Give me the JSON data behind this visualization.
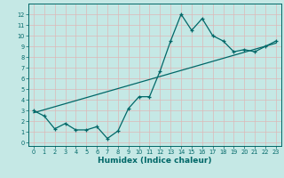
{
  "xlabel": "Humidex (Indice chaleur)",
  "ylabel": "",
  "bg_color": "#c5e8e5",
  "grid_color": "#ddb8b8",
  "line_color": "#006868",
  "x_data": [
    0,
    1,
    2,
    3,
    4,
    5,
    6,
    7,
    8,
    9,
    10,
    11,
    12,
    13,
    14,
    15,
    16,
    17,
    18,
    19,
    20,
    21,
    22,
    23
  ],
  "y_data": [
    3.0,
    2.5,
    1.3,
    1.8,
    1.2,
    1.2,
    1.5,
    0.4,
    1.1,
    3.2,
    4.3,
    4.3,
    6.7,
    9.5,
    12.0,
    10.5,
    11.6,
    10.0,
    9.5,
    8.5,
    8.7,
    8.5,
    9.0,
    9.5
  ],
  "trend_x": [
    0,
    23
  ],
  "trend_y": [
    2.8,
    9.3
  ],
  "xlim": [
    -0.5,
    23.5
  ],
  "ylim": [
    -0.3,
    13.0
  ],
  "xticks": [
    0,
    1,
    2,
    3,
    4,
    5,
    6,
    7,
    8,
    9,
    10,
    11,
    12,
    13,
    14,
    15,
    16,
    17,
    18,
    19,
    20,
    21,
    22,
    23
  ],
  "yticks": [
    0,
    1,
    2,
    3,
    4,
    5,
    6,
    7,
    8,
    9,
    10,
    11,
    12
  ],
  "tick_fontsize": 4.8,
  "xlabel_fontsize": 6.5
}
